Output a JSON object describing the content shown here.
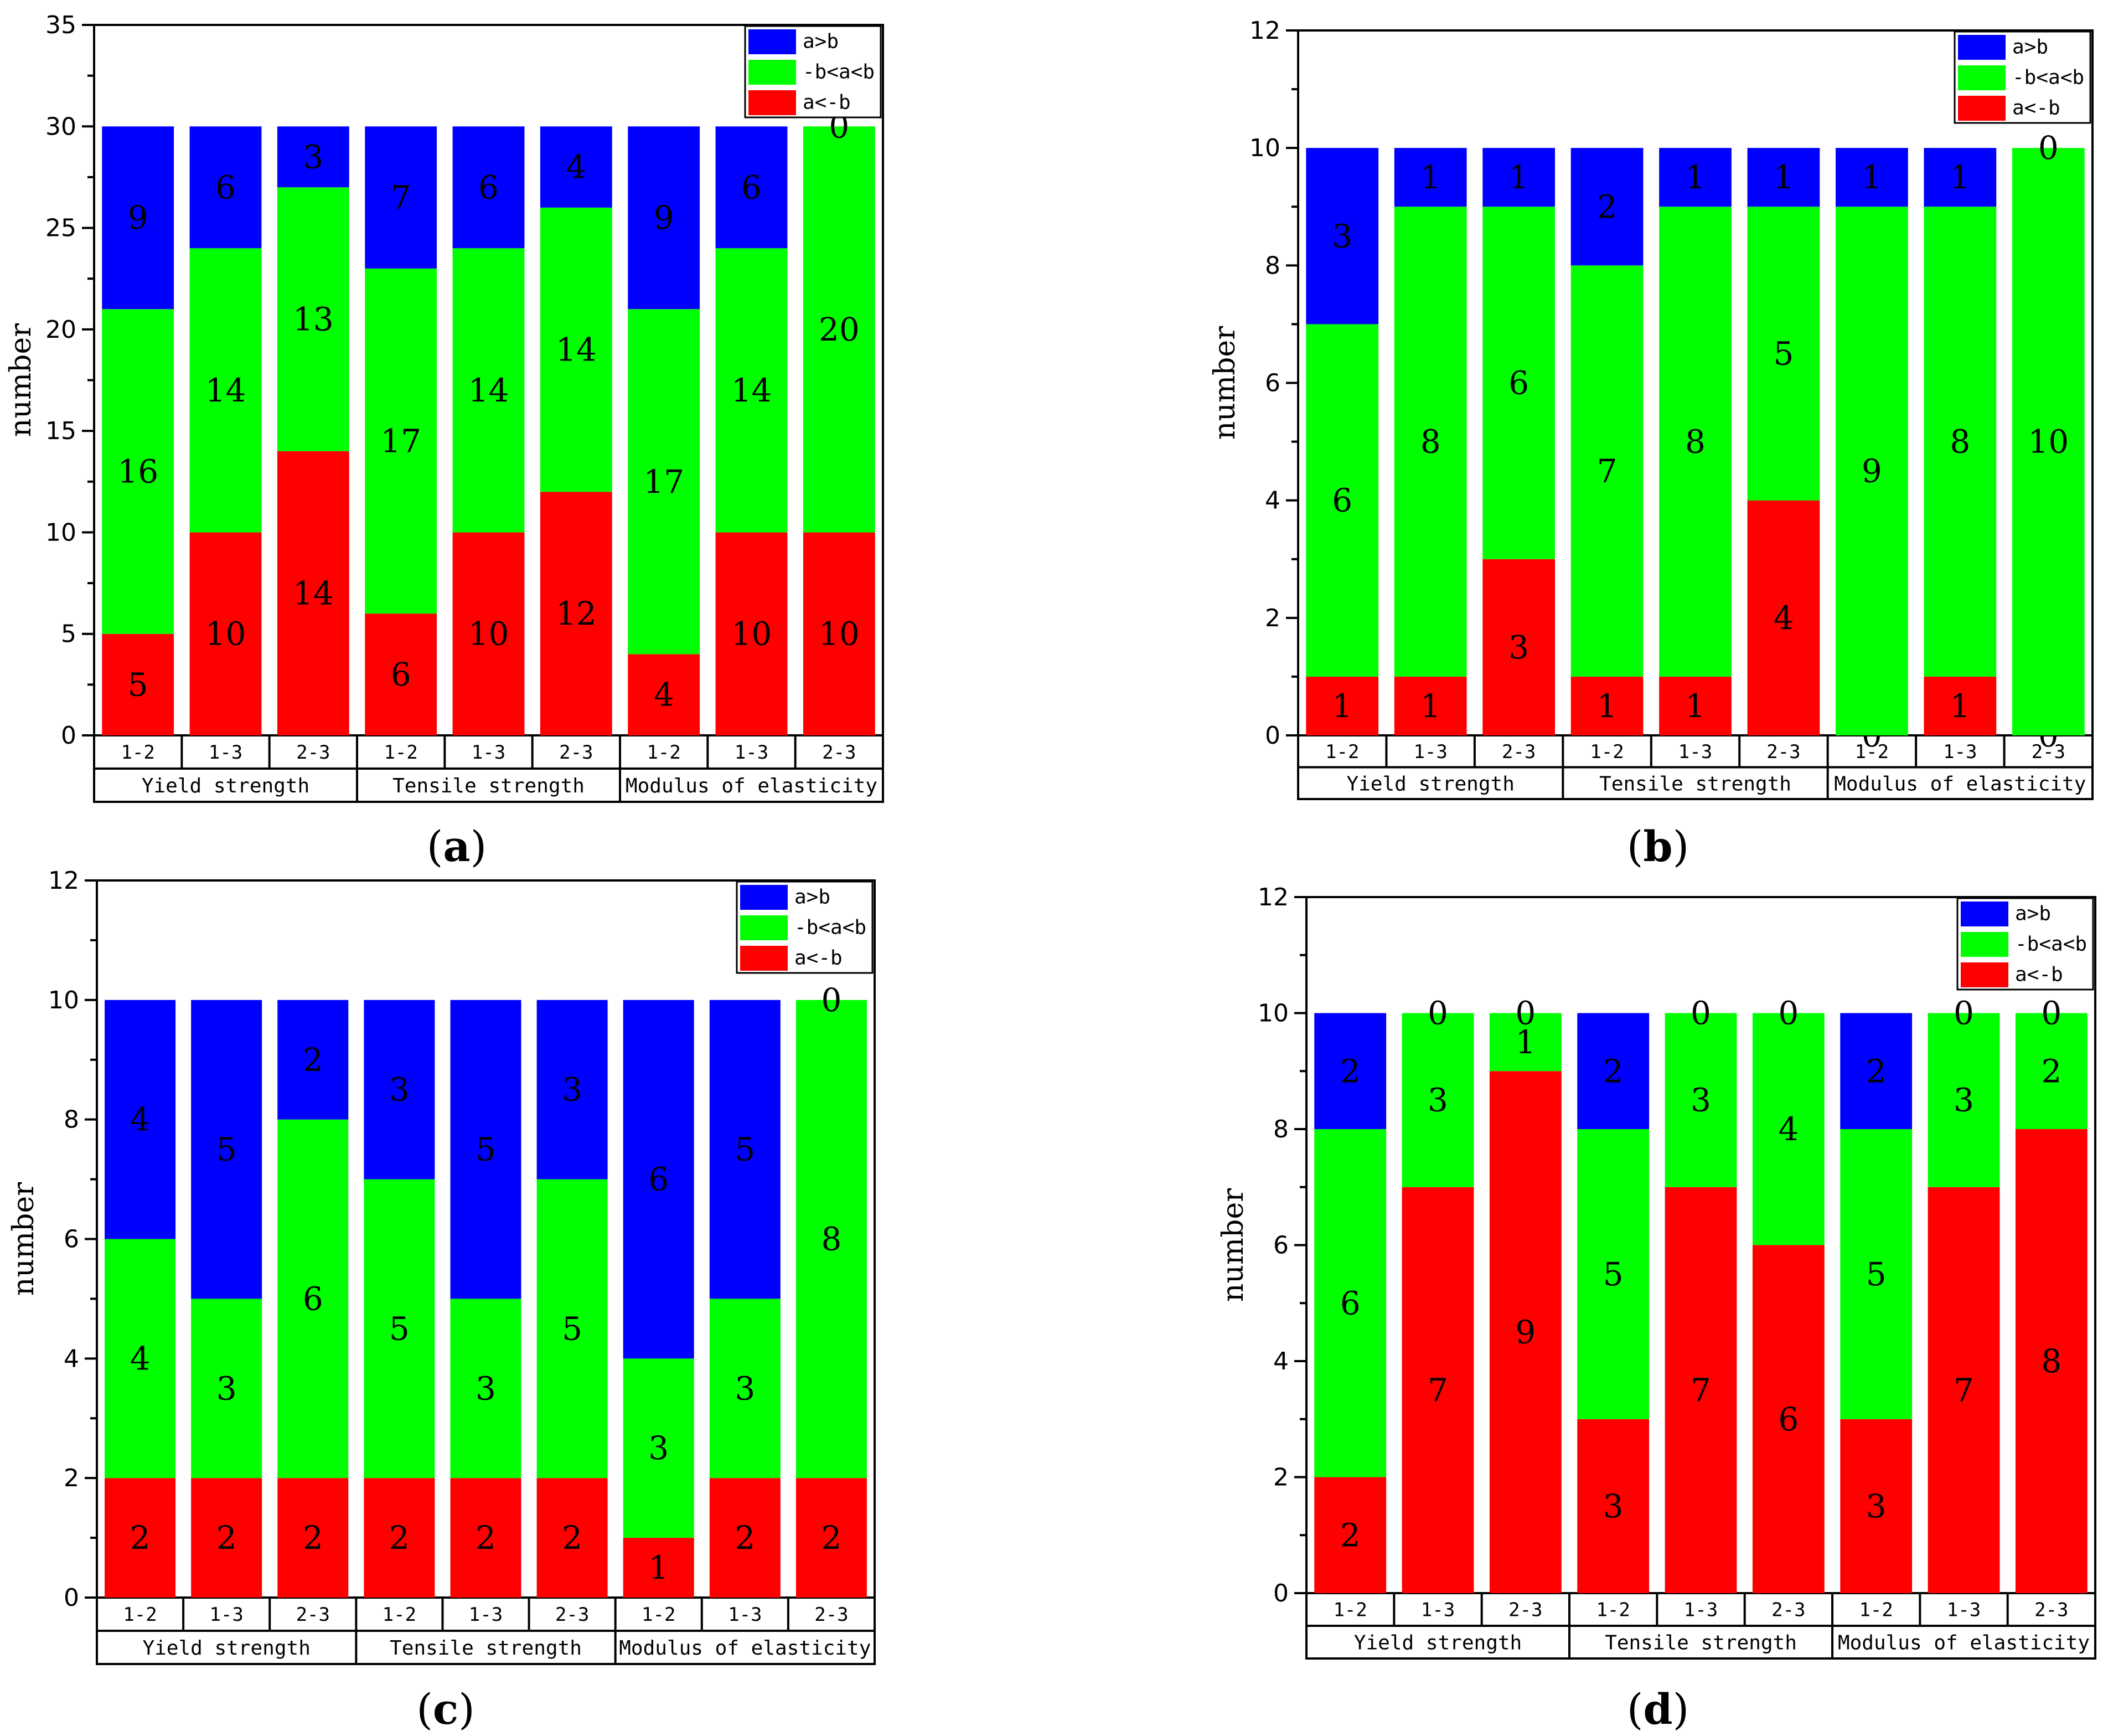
{
  "colors": {
    "a_gt_b": "#0000ff",
    "mid": "#00ff00",
    "a_lt_neg_b": "#ff0000"
  },
  "legend": [
    "a>b",
    "-b<a<b",
    "a<-b"
  ],
  "category_labels": [
    "1-2",
    "1-3",
    "2-3"
  ],
  "group_labels": [
    "Yield strength",
    "Tensile strength",
    "Modulus of elasticity"
  ],
  "chart_data": [
    {
      "type": "bar",
      "stacked": true,
      "caption_letter": "a",
      "ylabel": "number",
      "ylim": [
        0,
        35
      ],
      "yticks": [
        0,
        5,
        10,
        15,
        20,
        25,
        30,
        35
      ],
      "groups": [
        "Yield strength",
        "Tensile strength",
        "Modulus of elasticity"
      ],
      "categories": [
        "1-2",
        "1-3",
        "2-3",
        "1-2",
        "1-3",
        "2-3",
        "1-2",
        "1-3",
        "2-3"
      ],
      "series": [
        {
          "name": "a<-b",
          "values": [
            5,
            10,
            14,
            6,
            10,
            12,
            4,
            10,
            10
          ]
        },
        {
          "name": "-b<a<b",
          "values": [
            16,
            14,
            13,
            17,
            14,
            14,
            17,
            14,
            20
          ]
        },
        {
          "name": "a>b",
          "values": [
            9,
            6,
            3,
            7,
            6,
            4,
            9,
            6,
            0
          ]
        }
      ]
    },
    {
      "type": "bar",
      "stacked": true,
      "caption_letter": "b",
      "ylabel": "number",
      "ylim": [
        0,
        12
      ],
      "yticks": [
        0,
        2,
        4,
        6,
        8,
        10,
        12
      ],
      "groups": [
        "Yield strength",
        "Tensile strength",
        "Modulus of elasticity"
      ],
      "categories": [
        "1-2",
        "1-3",
        "2-3",
        "1-2",
        "1-3",
        "2-3",
        "1-2",
        "1-3",
        "2-3"
      ],
      "series": [
        {
          "name": "a<-b",
          "values": [
            1,
            1,
            3,
            1,
            1,
            4,
            0,
            1,
            0
          ]
        },
        {
          "name": "-b<a<b",
          "values": [
            6,
            8,
            6,
            7,
            8,
            5,
            9,
            8,
            10
          ]
        },
        {
          "name": "a>b",
          "values": [
            3,
            1,
            1,
            2,
            1,
            1,
            1,
            1,
            0
          ]
        }
      ]
    },
    {
      "type": "bar",
      "stacked": true,
      "caption_letter": "c",
      "ylabel": "number",
      "ylim": [
        0,
        12
      ],
      "yticks": [
        0,
        2,
        4,
        6,
        8,
        10,
        12
      ],
      "groups": [
        "Yield strength",
        "Tensile strength",
        "Modulus of elasticity"
      ],
      "categories": [
        "1-2",
        "1-3",
        "2-3",
        "1-2",
        "1-3",
        "2-3",
        "1-2",
        "1-3",
        "2-3"
      ],
      "series": [
        {
          "name": "a<-b",
          "values": [
            2,
            2,
            2,
            2,
            2,
            2,
            1,
            2,
            2
          ]
        },
        {
          "name": "-b<a<b",
          "values": [
            4,
            3,
            6,
            5,
            3,
            5,
            3,
            3,
            8
          ]
        },
        {
          "name": "a>b",
          "values": [
            4,
            5,
            2,
            3,
            5,
            3,
            6,
            5,
            0
          ]
        }
      ]
    },
    {
      "type": "bar",
      "stacked": true,
      "caption_letter": "d",
      "ylabel": "number",
      "ylim": [
        0,
        12
      ],
      "yticks": [
        0,
        2,
        4,
        6,
        8,
        10,
        12
      ],
      "groups": [
        "Yield strength",
        "Tensile strength",
        "Modulus of elasticity"
      ],
      "categories": [
        "1-2",
        "1-3",
        "2-3",
        "1-2",
        "1-3",
        "2-3",
        "1-2",
        "1-3",
        "2-3"
      ],
      "series": [
        {
          "name": "a<-b",
          "values": [
            2,
            7,
            9,
            3,
            7,
            6,
            3,
            7,
            8
          ]
        },
        {
          "name": "-b<a<b",
          "values": [
            6,
            3,
            1,
            5,
            3,
            4,
            5,
            3,
            2
          ]
        },
        {
          "name": "a>b",
          "values": [
            2,
            0,
            0,
            2,
            0,
            0,
            2,
            0,
            0
          ]
        }
      ]
    }
  ]
}
